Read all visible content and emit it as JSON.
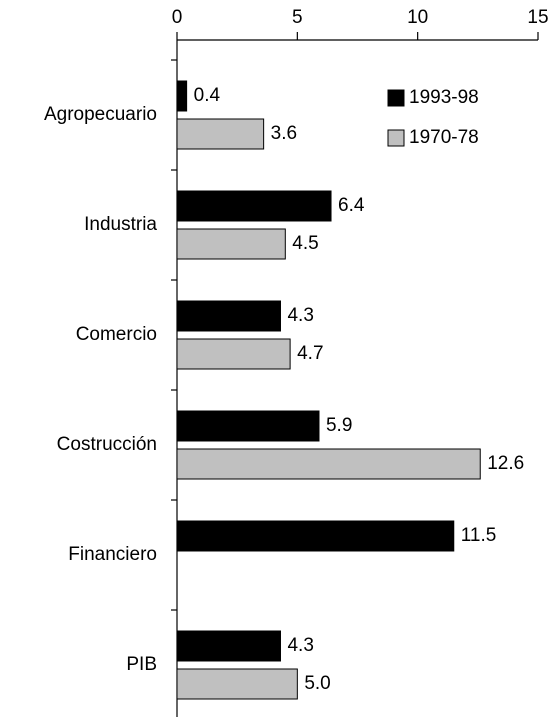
{
  "chart_data": {
    "type": "hbar",
    "categories": [
      "Agropecuario",
      "Industria",
      "Comercio",
      "Costrucción",
      "Financiero",
      "PIB"
    ],
    "series": [
      {
        "name": "1993-98",
        "color": "#000000",
        "values": [
          0.4,
          6.4,
          4.3,
          5.9,
          11.5,
          4.3
        ]
      },
      {
        "name": "1970-78",
        "color": "#c0c0c0",
        "values": [
          3.6,
          4.5,
          4.7,
          12.6,
          null,
          5.0
        ],
        "value_labels": [
          "3.6",
          "4.5",
          "4.7",
          "12.6",
          null,
          "5.0"
        ]
      }
    ],
    "xlim": [
      0,
      15
    ],
    "xticks": [
      0,
      5,
      10,
      15
    ],
    "legend": "upper right"
  }
}
